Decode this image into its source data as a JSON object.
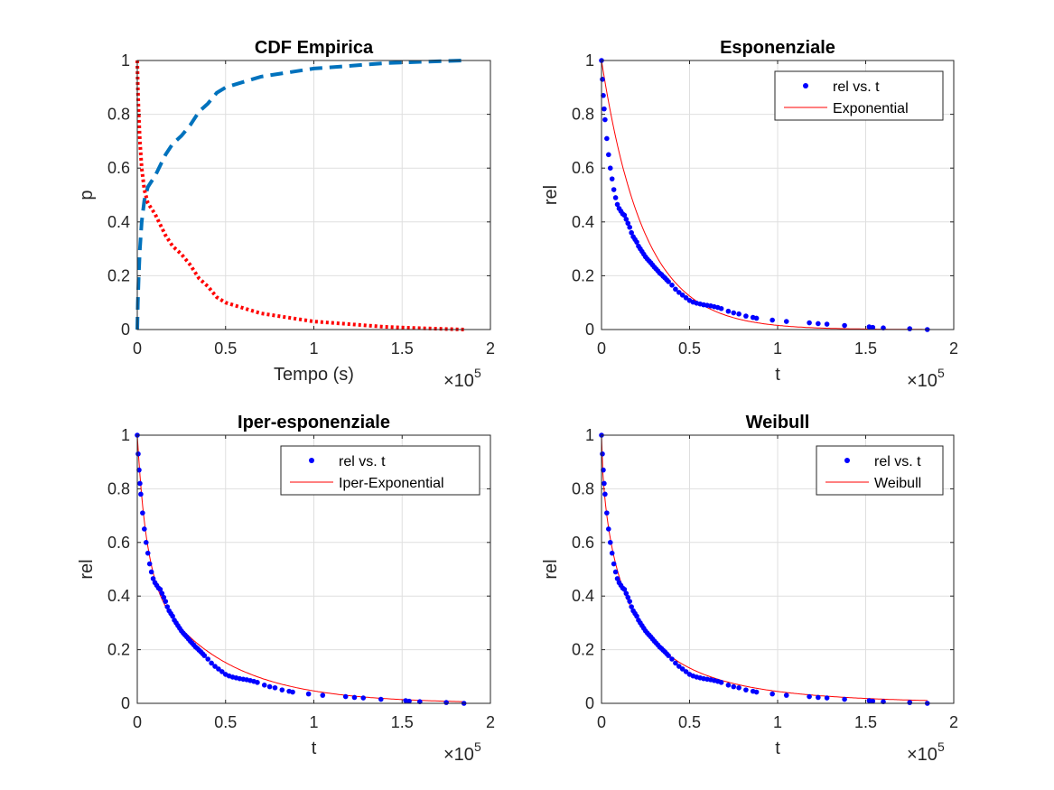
{
  "exponent_label": "×10",
  "exponent_power": "5",
  "chart_data": [
    {
      "type": "line",
      "title": "CDF Empirica",
      "xlabel": "Tempo (s)",
      "ylabel": "p",
      "xlim": [
        0,
        200000
      ],
      "ylim": [
        0,
        1
      ],
      "xticks": [
        "0",
        "0.5",
        "1",
        "1.5",
        "2"
      ],
      "yticks": [
        "0",
        "0.2",
        "0.4",
        "0.6",
        "0.8",
        "1"
      ],
      "grid": true,
      "legend": null,
      "series": [
        {
          "color": "#0072BD",
          "style": "dashed",
          "x": [
            0,
            300,
            800,
            1500,
            2500,
            4000,
            6000,
            8000,
            10000,
            13000,
            16000,
            20000,
            25000,
            30000,
            35000,
            40000,
            45000,
            50000,
            60000,
            70000,
            80000,
            100000,
            120000,
            140000,
            160000,
            185000
          ],
          "y": [
            0,
            0.1,
            0.2,
            0.3,
            0.4,
            0.48,
            0.53,
            0.55,
            0.57,
            0.61,
            0.65,
            0.69,
            0.72,
            0.76,
            0.81,
            0.84,
            0.88,
            0.9,
            0.92,
            0.94,
            0.95,
            0.97,
            0.98,
            0.99,
            0.995,
            1
          ]
        },
        {
          "color": "#FF0000",
          "style": "dotted",
          "x": [
            0,
            300,
            800,
            1500,
            2500,
            4000,
            6000,
            8000,
            10000,
            13000,
            16000,
            20000,
            25000,
            30000,
            35000,
            40000,
            45000,
            50000,
            60000,
            70000,
            80000,
            100000,
            120000,
            140000,
            160000,
            185000
          ],
          "y": [
            1,
            0.9,
            0.8,
            0.7,
            0.6,
            0.52,
            0.47,
            0.45,
            0.43,
            0.39,
            0.35,
            0.31,
            0.28,
            0.24,
            0.19,
            0.16,
            0.12,
            0.1,
            0.08,
            0.06,
            0.05,
            0.03,
            0.02,
            0.01,
            0.005,
            0
          ]
        }
      ]
    },
    {
      "type": "scatter",
      "title": "Esponenziale",
      "xlabel": "t",
      "ylabel": "rel",
      "xlim": [
        0,
        200000
      ],
      "ylim": [
        0,
        1
      ],
      "xticks": [
        "0",
        "0.5",
        "1",
        "1.5",
        "2"
      ],
      "yticks": [
        "0",
        "0.2",
        "0.4",
        "0.6",
        "0.8",
        "1"
      ],
      "grid": true,
      "legend": {
        "position": "top-right",
        "entries": [
          "rel vs. t",
          "Exponential"
        ]
      },
      "scatter_color": "#0000FF",
      "fit_color": "#FF0000",
      "fit": {
        "kind": "exponential",
        "scale": 24000
      },
      "points": {
        "x": [
          0,
          500,
          1000,
          1500,
          2000,
          3000,
          4000,
          5000,
          6000,
          7000,
          8000,
          9000,
          10000,
          11000,
          12000,
          13000,
          14000,
          15000,
          16000,
          17000,
          18000,
          19000,
          20000,
          21000,
          22000,
          23000,
          24000,
          25000,
          26000,
          27000,
          28000,
          29000,
          30000,
          31000,
          32000,
          33000,
          34000,
          35000,
          36000,
          37000,
          38000,
          40000,
          42000,
          44000,
          46000,
          48000,
          50000,
          52000,
          54000,
          56000,
          58000,
          60000,
          62000,
          64000,
          66000,
          68000,
          72000,
          75000,
          78000,
          82000,
          86000,
          88000,
          97000,
          105000,
          118000,
          123000,
          128000,
          138000,
          152000,
          154000,
          160000,
          175000,
          185000
        ],
        "y": [
          1,
          0.93,
          0.87,
          0.82,
          0.78,
          0.71,
          0.65,
          0.6,
          0.56,
          0.52,
          0.49,
          0.465,
          0.45,
          0.44,
          0.43,
          0.425,
          0.41,
          0.395,
          0.38,
          0.36,
          0.345,
          0.335,
          0.325,
          0.31,
          0.3,
          0.29,
          0.28,
          0.27,
          0.262,
          0.255,
          0.248,
          0.24,
          0.232,
          0.225,
          0.218,
          0.21,
          0.205,
          0.198,
          0.192,
          0.185,
          0.178,
          0.165,
          0.15,
          0.138,
          0.128,
          0.118,
          0.108,
          0.102,
          0.098,
          0.095,
          0.092,
          0.09,
          0.088,
          0.085,
          0.082,
          0.078,
          0.068,
          0.062,
          0.058,
          0.05,
          0.045,
          0.042,
          0.035,
          0.03,
          0.025,
          0.022,
          0.02,
          0.015,
          0.01,
          0.008,
          0.006,
          0.003,
          0
        ]
      }
    },
    {
      "type": "scatter",
      "title": "Iper-esponenziale",
      "xlabel": "t",
      "ylabel": "rel",
      "xlim": [
        0,
        200000
      ],
      "ylim": [
        0,
        1
      ],
      "xticks": [
        "0",
        "0.5",
        "1",
        "1.5",
        "2"
      ],
      "yticks": [
        "0",
        "0.2",
        "0.4",
        "0.6",
        "0.8",
        "1"
      ],
      "grid": true,
      "legend": {
        "position": "top-right",
        "entries": [
          "rel vs. t",
          "Iper-Exponential"
        ]
      },
      "scatter_color": "#0000FF",
      "fit_color": "#FF0000",
      "fit": {
        "kind": "hyperexponential",
        "p": 0.5,
        "scale1": 5000,
        "scale2": 42000
      },
      "points": {
        "x": [
          0,
          500,
          1000,
          1500,
          2000,
          3000,
          4000,
          5000,
          6000,
          7000,
          8000,
          9000,
          10000,
          11000,
          12000,
          13000,
          14000,
          15000,
          16000,
          17000,
          18000,
          19000,
          20000,
          21000,
          22000,
          23000,
          24000,
          25000,
          26000,
          27000,
          28000,
          29000,
          30000,
          31000,
          32000,
          33000,
          34000,
          35000,
          36000,
          37000,
          38000,
          40000,
          42000,
          44000,
          46000,
          48000,
          50000,
          52000,
          54000,
          56000,
          58000,
          60000,
          62000,
          64000,
          66000,
          68000,
          72000,
          75000,
          78000,
          82000,
          86000,
          88000,
          97000,
          105000,
          118000,
          123000,
          128000,
          138000,
          152000,
          154000,
          160000,
          175000,
          185000
        ],
        "y": [
          1,
          0.93,
          0.87,
          0.82,
          0.78,
          0.71,
          0.65,
          0.6,
          0.56,
          0.52,
          0.49,
          0.465,
          0.45,
          0.44,
          0.43,
          0.425,
          0.41,
          0.395,
          0.38,
          0.36,
          0.345,
          0.335,
          0.325,
          0.31,
          0.3,
          0.29,
          0.28,
          0.27,
          0.262,
          0.255,
          0.248,
          0.24,
          0.232,
          0.225,
          0.218,
          0.21,
          0.205,
          0.198,
          0.192,
          0.185,
          0.178,
          0.165,
          0.15,
          0.138,
          0.128,
          0.118,
          0.108,
          0.102,
          0.098,
          0.095,
          0.092,
          0.09,
          0.088,
          0.085,
          0.082,
          0.078,
          0.068,
          0.062,
          0.058,
          0.05,
          0.045,
          0.042,
          0.035,
          0.03,
          0.025,
          0.022,
          0.02,
          0.015,
          0.01,
          0.008,
          0.006,
          0.003,
          0
        ]
      }
    },
    {
      "type": "scatter",
      "title": "Weibull",
      "xlabel": "t",
      "ylabel": "rel",
      "xlim": [
        0,
        200000
      ],
      "ylim": [
        0,
        1
      ],
      "xticks": [
        "0",
        "0.5",
        "1",
        "1.5",
        "2"
      ],
      "yticks": [
        "0",
        "0.2",
        "0.4",
        "0.6",
        "0.8",
        "1"
      ],
      "grid": true,
      "legend": {
        "position": "top-right",
        "entries": [
          "rel vs. t",
          "Weibull"
        ]
      },
      "scatter_color": "#0000FF",
      "fit_color": "#FF0000",
      "fit": {
        "kind": "weibull",
        "scale": 16000,
        "shape": 0.62
      },
      "points": {
        "x": [
          0,
          500,
          1000,
          1500,
          2000,
          3000,
          4000,
          5000,
          6000,
          7000,
          8000,
          9000,
          10000,
          11000,
          12000,
          13000,
          14000,
          15000,
          16000,
          17000,
          18000,
          19000,
          20000,
          21000,
          22000,
          23000,
          24000,
          25000,
          26000,
          27000,
          28000,
          29000,
          30000,
          31000,
          32000,
          33000,
          34000,
          35000,
          36000,
          37000,
          38000,
          40000,
          42000,
          44000,
          46000,
          48000,
          50000,
          52000,
          54000,
          56000,
          58000,
          60000,
          62000,
          64000,
          66000,
          68000,
          72000,
          75000,
          78000,
          82000,
          86000,
          88000,
          97000,
          105000,
          118000,
          123000,
          128000,
          138000,
          152000,
          154000,
          160000,
          175000,
          185000
        ],
        "y": [
          1,
          0.93,
          0.87,
          0.82,
          0.78,
          0.71,
          0.65,
          0.6,
          0.56,
          0.52,
          0.49,
          0.465,
          0.45,
          0.44,
          0.43,
          0.425,
          0.41,
          0.395,
          0.38,
          0.36,
          0.345,
          0.335,
          0.325,
          0.31,
          0.3,
          0.29,
          0.28,
          0.27,
          0.262,
          0.255,
          0.248,
          0.24,
          0.232,
          0.225,
          0.218,
          0.21,
          0.205,
          0.198,
          0.192,
          0.185,
          0.178,
          0.165,
          0.15,
          0.138,
          0.128,
          0.118,
          0.108,
          0.102,
          0.098,
          0.095,
          0.092,
          0.09,
          0.088,
          0.085,
          0.082,
          0.078,
          0.068,
          0.062,
          0.058,
          0.05,
          0.045,
          0.042,
          0.035,
          0.03,
          0.025,
          0.022,
          0.02,
          0.015,
          0.01,
          0.008,
          0.006,
          0.003,
          0
        ]
      }
    }
  ]
}
